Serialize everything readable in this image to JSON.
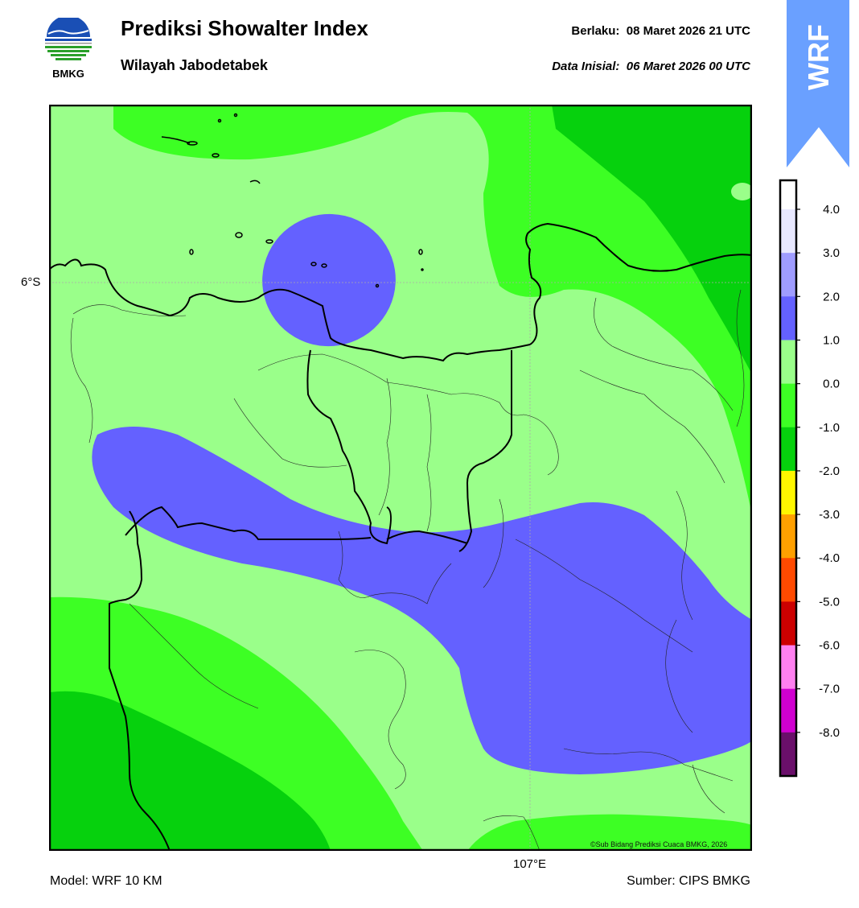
{
  "header": {
    "title": "Prediksi Showalter Index",
    "subtitle": "Wilayah Jabodetabek",
    "valid_label": "Berlaku:  08 Maret 2026 21 UTC",
    "init_label": "Data Inisial:  06 Maret 2026 00 UTC"
  },
  "logo": {
    "text": "BMKG",
    "icon": "bmkg-logo-icon"
  },
  "badge": {
    "text": "WRF",
    "color": "#6aa0ff"
  },
  "map": {
    "lat_label": "6°S",
    "lon_label": "107°E",
    "copyright": "©Sub Bidang Prediksi Cuaca BMKG, 2026"
  },
  "colorbar": {
    "ticks": [
      "4.0",
      "3.0",
      "2.0",
      "1.0",
      "0.0",
      "-1.0",
      "-2.0",
      "-3.0",
      "-4.0",
      "-5.0",
      "-6.0",
      "-7.0",
      "-8.0"
    ],
    "colors": [
      "#e8e8ff",
      "#9f9cff",
      "#6461ff",
      "#9aff8a",
      "#3dff24",
      "#06d10d",
      "#fff700",
      "#ffa000",
      "#ff4a00",
      "#cc0000",
      "#ff80f0",
      "#d000d0",
      "#6a0f6a"
    ]
  },
  "footer": {
    "model": "Model: WRF 10 KM",
    "source": "Sumber: CIPS BMKG"
  }
}
